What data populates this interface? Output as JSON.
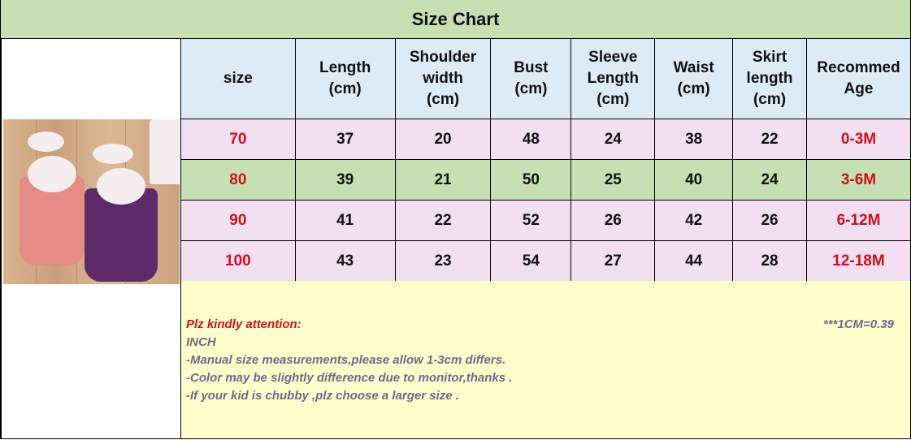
{
  "title": "Size Chart",
  "headers": [
    "size",
    "Length\n(cm)",
    "Shoulder\nwidth\n(cm)",
    "Bust\n(cm)",
    "Sleeve\nLength\n(cm)",
    "Waist\n(cm)",
    "Skirt\nlength\n(cm)",
    "Recommed\nAge"
  ],
  "rows": [
    [
      "70",
      "37",
      "20",
      "48",
      "24",
      "38",
      "22",
      "0-3M"
    ],
    [
      "80",
      "39",
      "21",
      "50",
      "25",
      "40",
      "24",
      "3-6M"
    ],
    [
      "90",
      "41",
      "22",
      "52",
      "26",
      "42",
      "26",
      "6-12M"
    ],
    [
      "100",
      "43",
      "23",
      "54",
      "27",
      "44",
      "28",
      "12-18M"
    ]
  ],
  "notes": {
    "attention": "Plz kindly attention:",
    "conversion": "***1CM=0.39",
    "inch": "INCH",
    "lines": [
      "-Manual size measurements,please allow 1-3cm differs.",
      "-Color may be slightly difference due to monitor,thanks .",
      "-If your kid is chubby ,plz choose a larger size ."
    ]
  },
  "colors": {
    "title_bg": "#c6e0b4",
    "header_bg": "#ddebf7",
    "pink_row": "#f2dff2",
    "green_row": "#c6e0b4",
    "note_bg": "#ffffcc",
    "accent_red": "#d0101a"
  }
}
